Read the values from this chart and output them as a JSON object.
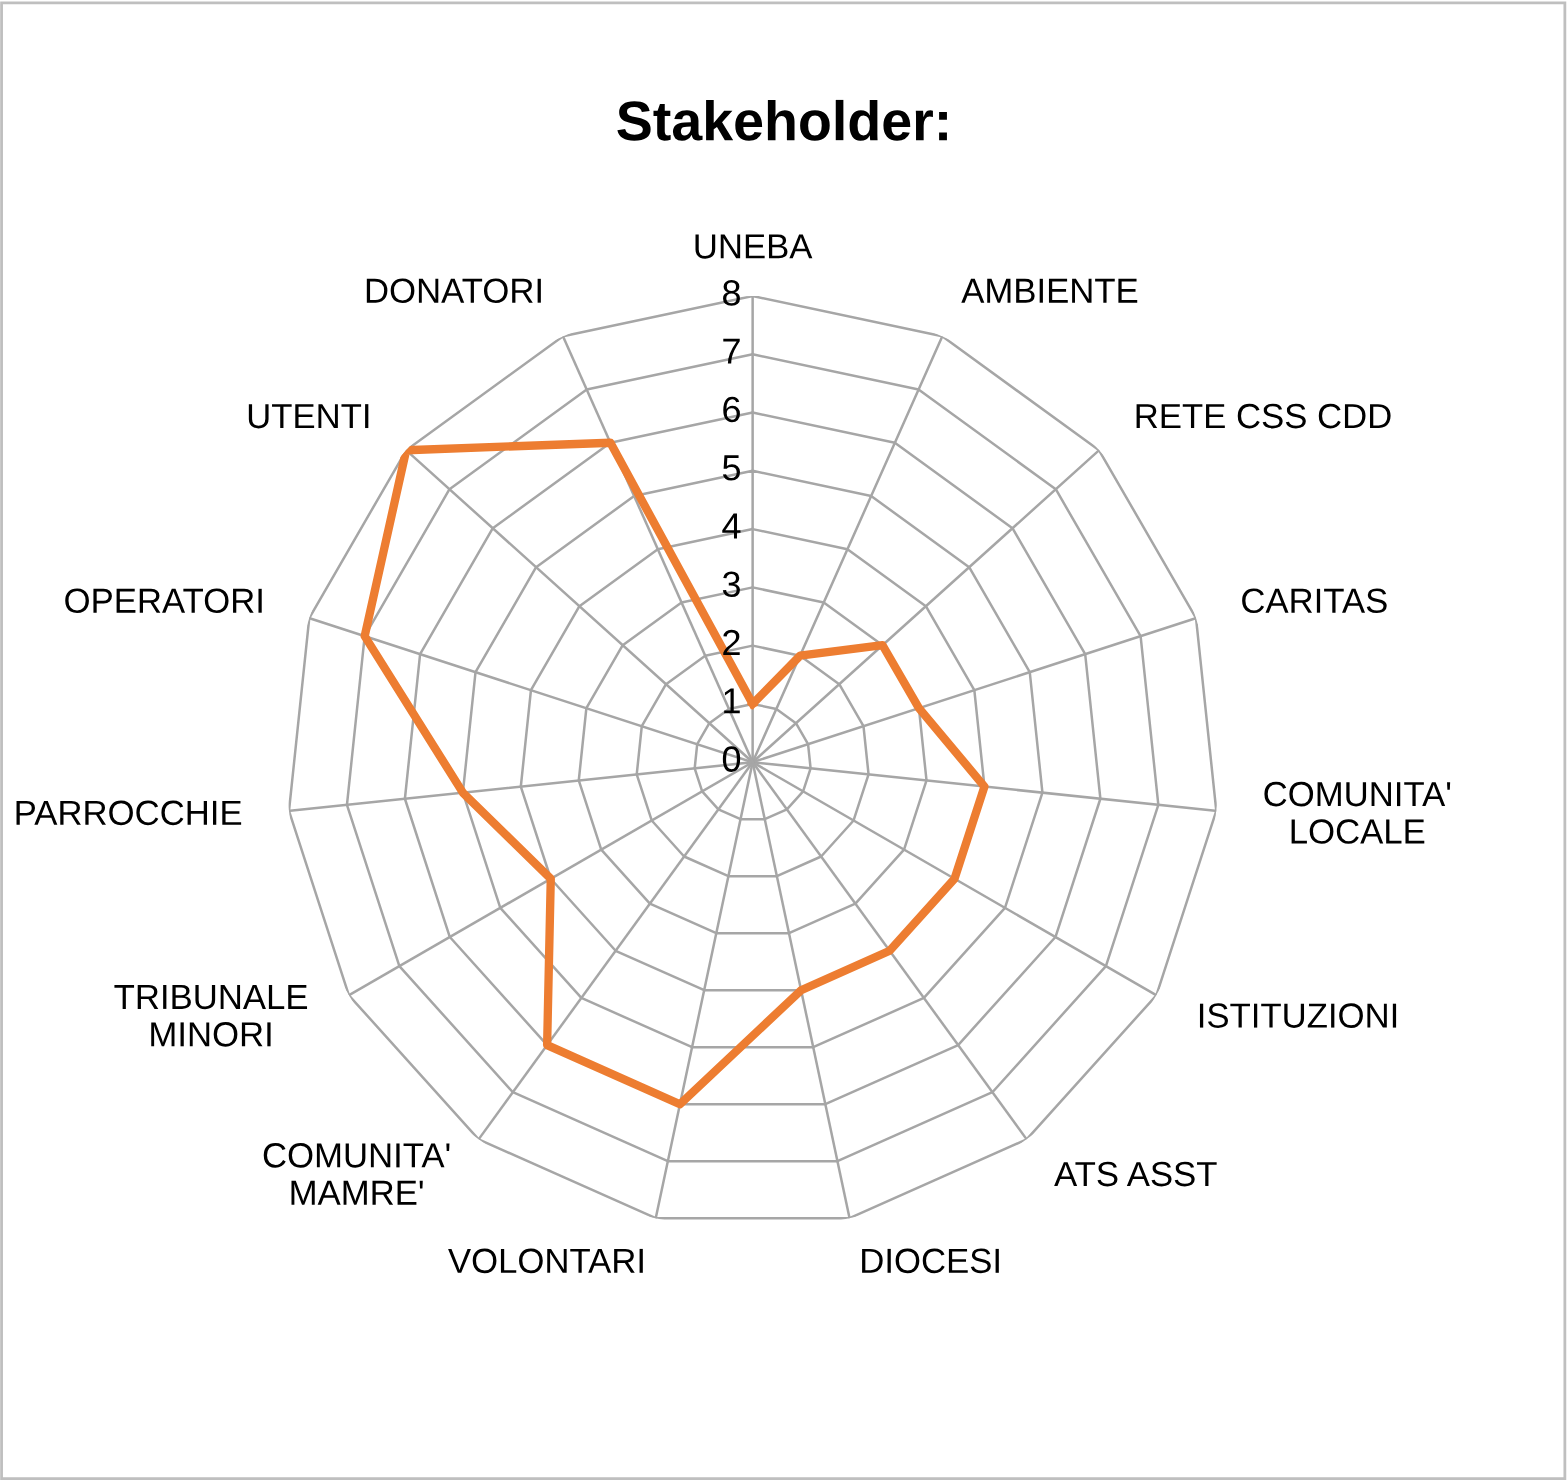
{
  "chart_data": {
    "type": "radar",
    "title": "Stakeholder:",
    "categories": [
      "UNEBA",
      "AMBIENTE",
      "RETE CSS CDD",
      "CARITAS",
      "COMUNITA'\nLOCALE",
      "ISTITUZIONI",
      "ATS ASST",
      "DIOCESI",
      "VOLONTARI",
      "COMUNITA'\nMAMRE'",
      "TRIBUNALE\nMINORI",
      "PARROCCHIE",
      "OPERATORI",
      "UTENTI",
      "DONATORI"
    ],
    "series": [
      {
        "color": "#ed7d31",
        "values": [
          1,
          2,
          3,
          3,
          4,
          4,
          4,
          4,
          6,
          6,
          4,
          5,
          7,
          8,
          6
        ]
      }
    ],
    "ylim": [
      0,
      8
    ],
    "yticks": [
      0,
      1,
      2,
      3,
      4,
      5,
      6,
      7,
      8
    ],
    "grid": true,
    "legend": false,
    "marker": "none"
  }
}
